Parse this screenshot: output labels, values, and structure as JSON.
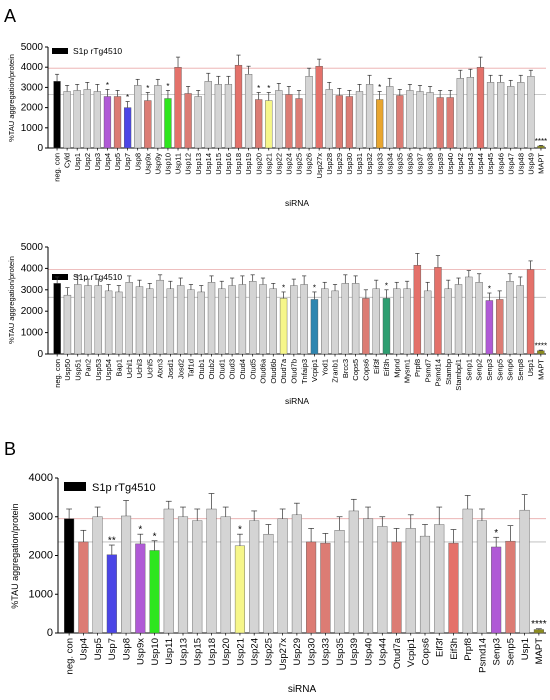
{
  "panel_labels": {
    "a": "A",
    "b": "B"
  },
  "colors": {
    "grey": "#d4d4d4",
    "salmon": "#dc7c74",
    "red": "#e4716a",
    "violet": "#b05ad6",
    "blue": "#4b45e6",
    "green": "#2ee61e",
    "yellow": "#f6f68a",
    "orange": "#e9a62f",
    "teal": "#2f86b0",
    "sea": "#2e9e71",
    "black": "#000000",
    "mapt": "#8c8c1e",
    "refline_upper": "#e9aaaa",
    "refline_lower": "#b8b8b8"
  },
  "chart_data": [
    {
      "type": "bar",
      "panel": "A-top",
      "legend": "S1p rTg4510",
      "xlabel": "siRNA",
      "ylabel": "%TAU aggregation/protein",
      "ylim": [
        0,
        5000
      ],
      "yticks": [
        "0",
        "1000",
        "2000",
        "3000",
        "4000",
        "5000"
      ],
      "reference_lines": [
        3950,
        2650
      ],
      "categories": [
        "neg. con",
        "Cyld",
        "Usp1",
        "Usp2",
        "Usp3",
        "Usp4",
        "Usp5",
        "Usp7",
        "Usp8",
        "Usp9x",
        "Usp9y",
        "Usp10",
        "Usp11",
        "Usp12",
        "Usp13",
        "Usp14",
        "Usp15",
        "Usp16",
        "Usp18",
        "Usp19",
        "Usp20",
        "Usp21",
        "Usp22",
        "Usp24",
        "Usp25",
        "Usp26",
        "Usp27x",
        "Usp28",
        "Usp29",
        "Usp30",
        "Usp31",
        "Usp32",
        "Usp33",
        "Usp34",
        "Usp35",
        "Usp36",
        "Usp37",
        "Usp38",
        "Usp39",
        "Usp40",
        "Usp42",
        "Usp43",
        "Usp44",
        "Usp45",
        "Usp46",
        "Usp47",
        "Usp48",
        "Usp49",
        "MAPT"
      ],
      "values": [
        3300,
        2800,
        2850,
        2900,
        2800,
        2550,
        2550,
        2000,
        3100,
        2350,
        3100,
        2450,
        4000,
        2700,
        2550,
        3300,
        3150,
        3150,
        4100,
        3650,
        2400,
        2350,
        2850,
        2650,
        2450,
        3550,
        4050,
        2900,
        2600,
        2550,
        2800,
        3150,
        2400,
        3050,
        2600,
        2850,
        2800,
        2750,
        2500,
        2500,
        3450,
        3500,
        4000,
        3250,
        3250,
        3050,
        3250,
        3550,
        100
      ],
      "errors": [
        350,
        300,
        300,
        350,
        350,
        350,
        300,
        300,
        300,
        400,
        300,
        400,
        500,
        350,
        300,
        400,
        400,
        400,
        500,
        400,
        350,
        400,
        350,
        400,
        400,
        400,
        350,
        350,
        350,
        300,
        350,
        450,
        400,
        400,
        300,
        300,
        300,
        300,
        350,
        350,
        400,
        400,
        500,
        350,
        350,
        300,
        350,
        300,
        30
      ],
      "bar_colors": [
        "black",
        "grey",
        "grey",
        "grey",
        "grey",
        "violet",
        "salmon",
        "blue",
        "grey",
        "salmon",
        "grey",
        "green",
        "red",
        "salmon",
        "grey",
        "grey",
        "grey",
        "grey",
        "red",
        "grey",
        "salmon",
        "yellow",
        "grey",
        "salmon",
        "salmon",
        "grey",
        "red",
        "grey",
        "salmon",
        "salmon",
        "grey",
        "grey",
        "orange",
        "grey",
        "salmon",
        "grey",
        "grey",
        "grey",
        "salmon",
        "salmon",
        "grey",
        "grey",
        "red",
        "grey",
        "grey",
        "grey",
        "grey",
        "grey",
        "mapt"
      ],
      "significance": [
        "",
        "",
        "",
        "",
        "",
        "*",
        "",
        "*",
        "",
        "*",
        "",
        "*",
        "",
        "",
        "",
        "",
        "",
        "",
        "",
        "",
        "*",
        "*",
        "",
        "",
        "",
        "",
        "",
        "",
        "",
        "",
        "",
        "",
        "*",
        "",
        "",
        "",
        "",
        "",
        "",
        "",
        "",
        "",
        "",
        "",
        "",
        "",
        "",
        "",
        "****"
      ]
    },
    {
      "type": "bar",
      "panel": "A-bottom",
      "legend": "S1p rTg4510",
      "xlabel": "siRNA",
      "ylabel": "%TAU aggregation/protein",
      "ylim": [
        0,
        5000
      ],
      "yticks": [
        "0",
        "1000",
        "2000",
        "3000",
        "4000",
        "5000"
      ],
      "reference_lines": [
        3950,
        2650
      ],
      "categories": [
        "neg. con",
        "Usp50",
        "Usp51",
        "Pan2",
        "Usp53",
        "Usp54",
        "Bap1",
        "Uchl1",
        "Uchl3",
        "Uchl5",
        "Atxn3",
        "Josd1",
        "Josd2",
        "Taf1d",
        "Otub1",
        "Otub2",
        "Otud1",
        "Otud3",
        "Otud4",
        "Otud5",
        "Otud6a",
        "Otud6b",
        "Otud7a",
        "Otud7b",
        "Tnfaip3",
        "Vcpip1",
        "Yod1",
        "Zranb1",
        "Brcc3",
        "Cops5",
        "Cops6",
        "Eif3f",
        "Eif3h",
        "Mpnd",
        "Mysm1",
        "Prpf8",
        "Psmd7",
        "Psmd14",
        "Stambp",
        "Stambpl1",
        "Senp1",
        "Senp2",
        "Senp3",
        "Senp5",
        "Senp6",
        "Senp8",
        "Usp1",
        "MAPT"
      ],
      "values": [
        3300,
        2750,
        3250,
        3200,
        3200,
        2950,
        2900,
        3350,
        3150,
        3050,
        3450,
        3050,
        3200,
        3000,
        2900,
        3350,
        3050,
        3200,
        3250,
        3400,
        3250,
        3050,
        2600,
        3200,
        3250,
        2550,
        3050,
        2950,
        3300,
        3300,
        2600,
        3050,
        2600,
        3050,
        3050,
        4150,
        2950,
        4050,
        3050,
        3250,
        3600,
        3350,
        2500,
        2550,
        3400,
        3200,
        3950,
        150
      ],
      "errors": [
        300,
        350,
        400,
        300,
        300,
        300,
        300,
        300,
        300,
        250,
        250,
        350,
        350,
        250,
        300,
        300,
        350,
        350,
        400,
        300,
        300,
        250,
        300,
        300,
        400,
        350,
        300,
        300,
        400,
        350,
        400,
        400,
        400,
        300,
        350,
        550,
        400,
        550,
        400,
        300,
        300,
        400,
        350,
        400,
        350,
        400,
        400,
        30
      ],
      "bar_colors": [
        "black",
        "grey",
        "grey",
        "grey",
        "grey",
        "grey",
        "grey",
        "grey",
        "grey",
        "grey",
        "grey",
        "grey",
        "grey",
        "grey",
        "grey",
        "grey",
        "grey",
        "grey",
        "grey",
        "grey",
        "grey",
        "grey",
        "yellow",
        "grey",
        "grey",
        "teal",
        "grey",
        "grey",
        "grey",
        "grey",
        "salmon",
        "grey",
        "sea",
        "grey",
        "grey",
        "red",
        "grey",
        "red",
        "grey",
        "grey",
        "grey",
        "grey",
        "violet",
        "salmon",
        "grey",
        "grey",
        "red",
        "mapt"
      ],
      "significance": [
        "",
        "",
        "",
        "",
        "",
        "",
        "",
        "",
        "",
        "",
        "",
        "",
        "",
        "",
        "",
        "",
        "",
        "",
        "",
        "",
        "",
        "",
        "*",
        "",
        "",
        "*",
        "",
        "",
        "",
        "",
        "",
        "",
        "*",
        "",
        "",
        "",
        "",
        "",
        "",
        "",
        "",
        "",
        "*",
        "",
        "",
        "",
        "",
        "****"
      ]
    },
    {
      "type": "bar",
      "panel": "B",
      "legend": "S1p rTg4510",
      "xlabel": "siRNA",
      "ylabel": "%TAU aggregation/protein",
      "ylim": [
        0,
        4000
      ],
      "yticks": [
        "0",
        "1000",
        "2000",
        "3000",
        "4000"
      ],
      "reference_lines": [
        2950,
        2350
      ],
      "categories": [
        "neg. con",
        "Usp4",
        "Usp5",
        "Usp7",
        "Usp8",
        "Usp9x",
        "Usp10",
        "Usp11",
        "Usp13",
        "Usp15",
        "Usp18",
        "Usp20",
        "Usp21",
        "Usp24",
        "Usp25",
        "Usp27x",
        "Usp29",
        "Usp30",
        "Usp33",
        "Usp35",
        "Usp39",
        "Usp40",
        "Usp44",
        "Otud7a",
        "Vcpip1",
        "Cops6",
        "Eif3f",
        "Eif3h",
        "Prpf8",
        "Psmd14",
        "Senp3",
        "Senp5",
        "Usp1",
        "MAPT"
      ],
      "values": [
        2950,
        2350,
        3000,
        2020,
        3020,
        2300,
        2130,
        3200,
        3000,
        2900,
        3200,
        3000,
        2250,
        2900,
        2550,
        2950,
        3050,
        2350,
        2320,
        2650,
        3150,
        2950,
        2750,
        2350,
        2700,
        2500,
        2800,
        2320,
        3200,
        2900,
        2220,
        2370,
        3170,
        90
      ],
      "errors": [
        250,
        300,
        250,
        250,
        400,
        250,
        250,
        200,
        250,
        300,
        400,
        250,
        300,
        250,
        250,
        250,
        300,
        350,
        250,
        350,
        300,
        300,
        250,
        350,
        350,
        300,
        450,
        350,
        350,
        300,
        250,
        400,
        400,
        20
      ],
      "bar_colors": [
        "black",
        "salmon",
        "grey",
        "blue",
        "grey",
        "violet",
        "green",
        "grey",
        "grey",
        "grey",
        "grey",
        "grey",
        "yellow",
        "grey",
        "grey",
        "grey",
        "grey",
        "salmon",
        "salmon",
        "grey",
        "grey",
        "grey",
        "grey",
        "salmon",
        "grey",
        "grey",
        "grey",
        "red",
        "grey",
        "grey",
        "violet",
        "salmon",
        "grey",
        "mapt"
      ],
      "significance": [
        "",
        "",
        "",
        "**",
        "",
        "*",
        "*",
        "",
        "",
        "",
        "",
        "",
        "*",
        "",
        "",
        "",
        "",
        "",
        "",
        "",
        "",
        "",
        "",
        "",
        "",
        "",
        "",
        "",
        "",
        "",
        "*",
        "",
        "",
        "****"
      ]
    }
  ]
}
